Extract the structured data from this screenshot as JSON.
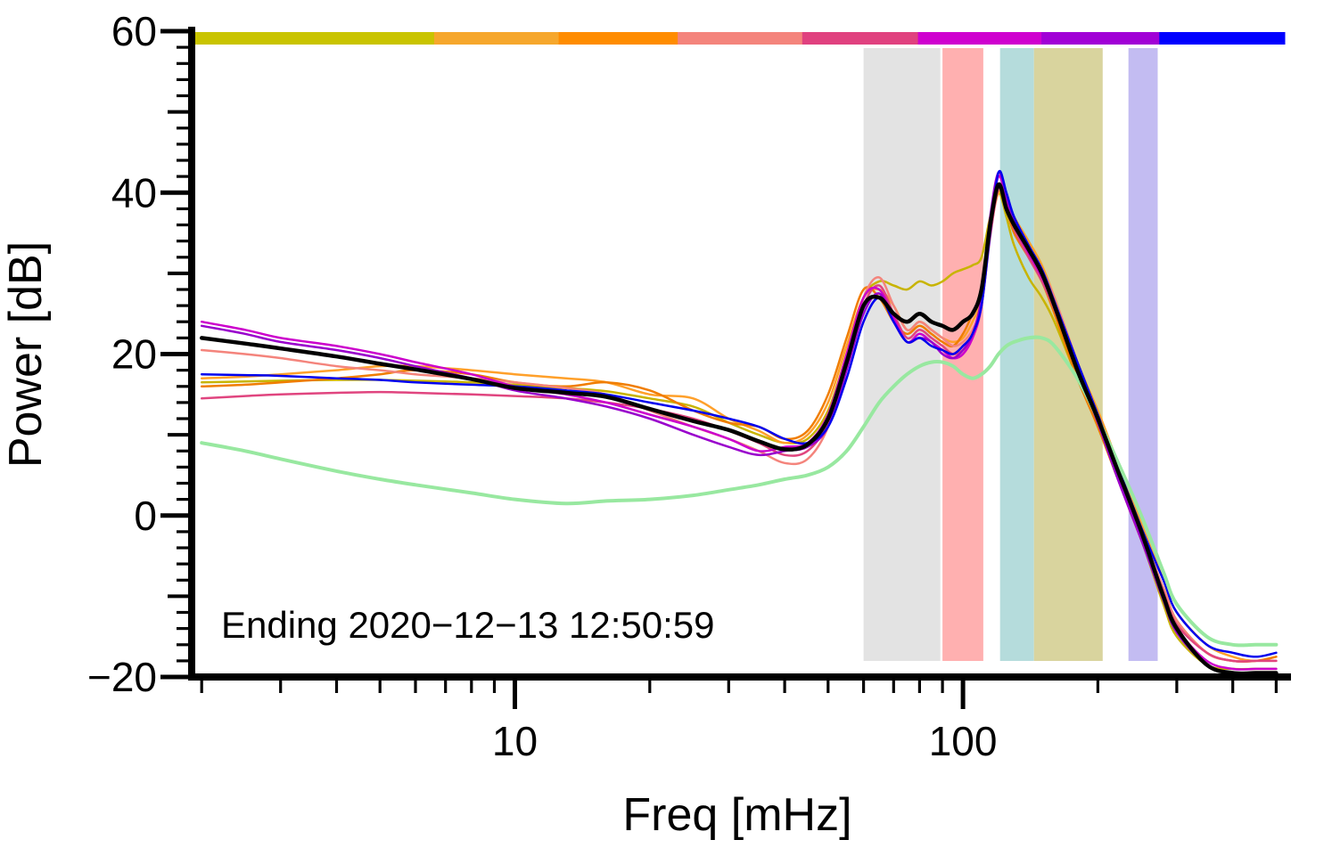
{
  "chart_data": {
    "type": "line",
    "xscale": "log",
    "xlim": [
      1.9,
      520
    ],
    "ylim": [
      -20,
      60
    ],
    "xlabel": "Freq [mHz]",
    "ylabel": "Power [dB]",
    "annotation": "Ending 2020−12−13 12:50:59",
    "grid": false,
    "legend": "none",
    "x_ticks_major": [
      {
        "v": 10,
        "label": "10"
      },
      {
        "v": 100,
        "label": "100"
      }
    ],
    "x_ticks_minor": [
      2,
      3,
      4,
      5,
      6,
      7,
      8,
      9,
      20,
      30,
      40,
      50,
      60,
      70,
      80,
      90,
      200,
      300,
      400,
      500
    ],
    "y_ticks_major": [
      {
        "v": -20,
        "label": "−20"
      },
      {
        "v": 0,
        "label": "0"
      },
      {
        "v": 20,
        "label": "20"
      },
      {
        "v": 40,
        "label": "40"
      },
      {
        "v": 60,
        "label": "60"
      }
    ],
    "y_tick_minor_step": 2,
    "bands": [
      {
        "name": "band-gray",
        "from": 60,
        "to": 89,
        "color": "#e3e3e3"
      },
      {
        "name": "band-red",
        "from": 90,
        "to": 111,
        "color": "#ffb0b0"
      },
      {
        "name": "band-teal",
        "from": 121,
        "to": 144,
        "color": "#b5dcdc"
      },
      {
        "name": "band-khaki",
        "from": 144,
        "to": 205,
        "color": "#d9d49e"
      },
      {
        "name": "band-purple",
        "from": 234,
        "to": 272,
        "color": "#c3bcf2"
      }
    ],
    "colorbar": {
      "segments": [
        {
          "color": "#c9c400",
          "frac": 0.222
        },
        {
          "color": "#f6a72c",
          "frac": 0.114
        },
        {
          "color": "#ff8c00",
          "frac": 0.109
        },
        {
          "color": "#f4847c",
          "frac": 0.114
        },
        {
          "color": "#e0417f",
          "frac": 0.106
        },
        {
          "color": "#cf00cf",
          "frac": 0.113
        },
        {
          "color": "#a100d6",
          "frac": 0.108
        },
        {
          "color": "#0000ff",
          "frac": 0.114
        }
      ]
    },
    "x": [
      2,
      2.5,
      3,
      4,
      5,
      6,
      8,
      10,
      13,
      16,
      20,
      25,
      30,
      35,
      40,
      45,
      50,
      55,
      60,
      65,
      70,
      75,
      80,
      85,
      90,
      95,
      100,
      105,
      110,
      115,
      120,
      125,
      130,
      140,
      150,
      160,
      180,
      200,
      220,
      250,
      280,
      300,
      350,
      400,
      450,
      500
    ],
    "series": [
      {
        "name": "spectrum-yellowgreen",
        "color": "#c8b400",
        "width": 2.5,
        "values": [
          16.5,
          16.6,
          16.7,
          16.8,
          16.8,
          16.7,
          16.5,
          16.2,
          15.8,
          15.4,
          14.5,
          13.5,
          11.5,
          10,
          9,
          9.5,
          13,
          20,
          27,
          29,
          28.5,
          28,
          29,
          28.5,
          29,
          30,
          30.5,
          31,
          32,
          37,
          40,
          37,
          33.5,
          29.5,
          27,
          24,
          17,
          11,
          5,
          -3,
          -11,
          -15,
          -18.5,
          -19,
          -19,
          -19
        ]
      },
      {
        "name": "spectrum-orange-1",
        "color": "#ffa02a",
        "width": 2.5,
        "values": [
          17,
          17.2,
          17.5,
          18,
          18.5,
          18.5,
          18,
          17.5,
          17,
          16.5,
          15,
          14.5,
          12,
          10.5,
          9,
          10,
          14,
          21,
          27,
          28,
          26,
          23,
          24,
          23,
          22,
          21.5,
          22,
          24,
          27,
          35,
          40,
          39,
          37,
          34,
          31,
          27,
          19,
          13,
          7,
          -1,
          -8,
          -12,
          -16,
          -17.5,
          -18,
          -17.5
        ]
      },
      {
        "name": "spectrum-orange-2",
        "color": "#f07d00",
        "width": 2.5,
        "values": [
          16,
          16.2,
          16.5,
          17,
          17.5,
          18,
          17.5,
          16.5,
          16,
          16.5,
          15.5,
          13,
          11.5,
          11,
          9.5,
          10.5,
          15,
          22,
          28,
          27,
          24,
          22.5,
          23.5,
          22.5,
          21.5,
          21,
          22.5,
          25,
          28,
          36,
          41,
          38,
          35,
          32,
          29,
          25,
          17,
          11,
          5,
          -3,
          -9,
          -13,
          -17,
          -18,
          -18,
          -17.5
        ]
      },
      {
        "name": "spectrum-salmon",
        "color": "#f4847c",
        "width": 2.5,
        "values": [
          20.5,
          20,
          19.5,
          18.5,
          18,
          17.5,
          17,
          16.5,
          15.8,
          15,
          13,
          11,
          9.5,
          8,
          6.5,
          7,
          11,
          19,
          27,
          29.5,
          26,
          23,
          24,
          23,
          22,
          21,
          21.5,
          23,
          26,
          35,
          41,
          39,
          36,
          33,
          30.5,
          27,
          19,
          12,
          6,
          -2,
          -9,
          -13,
          -17,
          -18,
          -18,
          -18
        ]
      },
      {
        "name": "spectrum-crimson",
        "color": "#e0457f",
        "width": 2.5,
        "values": [
          14.5,
          14.8,
          15,
          15.2,
          15.3,
          15.2,
          15,
          14.8,
          14.5,
          14,
          13.2,
          12,
          10.5,
          9,
          7.5,
          8,
          11.5,
          18.5,
          26,
          28.5,
          25,
          22,
          23,
          22,
          21,
          20,
          20.5,
          22,
          26,
          34.5,
          40.5,
          38.5,
          35.5,
          32,
          29,
          25.5,
          18,
          11.5,
          5.5,
          -2.5,
          -9.5,
          -13.5,
          -17,
          -18,
          -18,
          -18
        ]
      },
      {
        "name": "spectrum-magenta",
        "color": "#cc00cc",
        "width": 2.5,
        "values": [
          24,
          23,
          22,
          21,
          20,
          19,
          17.5,
          16,
          15,
          14,
          12.5,
          11,
          9.5,
          8,
          8.5,
          9,
          12.5,
          20,
          27,
          28,
          24.5,
          21.5,
          22.5,
          21.5,
          20.5,
          19.5,
          20,
          22,
          26,
          36,
          42,
          39,
          36,
          32.5,
          29.5,
          26,
          18.5,
          12,
          5,
          -3,
          -10,
          -14,
          -18,
          -19,
          -19,
          -19
        ]
      },
      {
        "name": "spectrum-purple",
        "color": "#9900cc",
        "width": 2.5,
        "values": [
          23.5,
          22.5,
          21.5,
          20.5,
          19.5,
          18.5,
          17,
          15.5,
          14.5,
          13.5,
          12,
          10,
          8.5,
          7.5,
          8,
          8.5,
          11,
          18,
          25,
          27.5,
          24,
          21.5,
          22,
          21.5,
          20,
          19.5,
          20.5,
          22.5,
          27,
          37,
          42.5,
          39.5,
          36.5,
          33,
          30,
          26,
          18,
          11.5,
          5,
          -3,
          -10.5,
          -14.5,
          -18.5,
          -19.5,
          -19.5,
          -19.5
        ]
      },
      {
        "name": "spectrum-blue",
        "color": "#0000ee",
        "width": 2.5,
        "values": [
          17.5,
          17.4,
          17.3,
          17,
          16.8,
          16.5,
          16.2,
          16,
          15.5,
          15,
          14,
          13,
          12,
          11,
          9.5,
          9,
          11,
          17,
          24,
          27,
          24,
          21.5,
          22,
          21,
          20.5,
          20,
          21,
          22.5,
          26,
          35,
          42.5,
          40,
          37,
          33.5,
          30.5,
          26.5,
          19,
          12.5,
          6.5,
          -1.5,
          -8,
          -12,
          -16,
          -17,
          -17.5,
          -17
        ]
      },
      {
        "name": "spectrum-palegreen",
        "color": "#98e8a0",
        "width": 4,
        "values": [
          9,
          8,
          7,
          5.5,
          4.5,
          3.8,
          2.8,
          2,
          1.5,
          1.8,
          2,
          2.5,
          3.2,
          3.8,
          4.5,
          5,
          6,
          8,
          11,
          14,
          16,
          17.5,
          18.5,
          19,
          19,
          18.5,
          17.5,
          17,
          17.5,
          18.5,
          20,
          21,
          21.5,
          22,
          22,
          21,
          17,
          12,
          7,
          0,
          -7,
          -11,
          -15,
          -16,
          -16,
          -16
        ]
      },
      {
        "name": "spectrum-mean-black",
        "color": "#000000",
        "width": 4.5,
        "values": [
          22,
          21.3,
          20.7,
          19.7,
          18.8,
          18.1,
          16.9,
          15.8,
          15.2,
          14.7,
          13.2,
          11.7,
          10.6,
          9.2,
          8.2,
          8.8,
          12,
          19,
          26,
          27,
          25,
          24,
          25,
          24,
          23.5,
          23,
          24,
          25,
          28,
          36,
          41,
          38,
          36,
          33,
          30,
          26,
          18,
          12,
          6,
          -2,
          -10,
          -14,
          -18.5,
          -19.5,
          -19.5,
          -19.5
        ]
      }
    ]
  }
}
